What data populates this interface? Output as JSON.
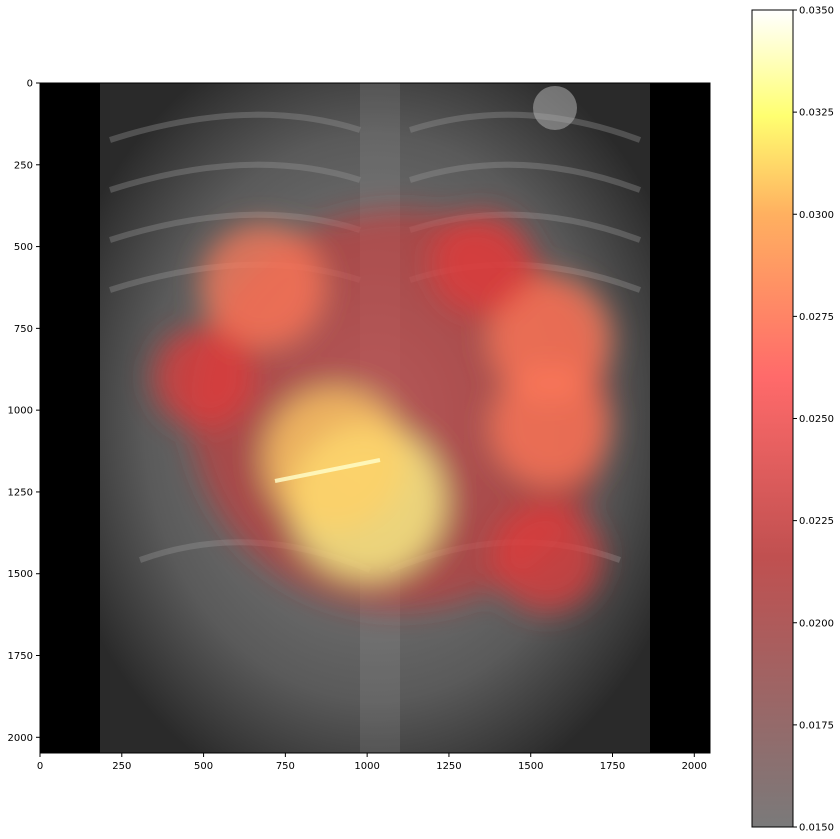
{
  "chart_data": {
    "type": "heatmap",
    "description_free": true,
    "x_axis": {
      "range": [
        0,
        2048
      ],
      "ticks": [
        0,
        250,
        500,
        750,
        1000,
        1250,
        1500,
        1750,
        2000
      ]
    },
    "y_axis": {
      "range": [
        2048,
        0
      ],
      "ticks": [
        0,
        250,
        500,
        750,
        1000,
        1250,
        1500,
        1750,
        2000
      ]
    },
    "colorbar": {
      "colormap": "hot",
      "range": [
        0.015,
        0.035
      ],
      "ticks": [
        "0.0150",
        "0.0175",
        "0.0200",
        "0.0225",
        "0.0250",
        "0.0275",
        "0.0300",
        "0.0325",
        "0.0350"
      ]
    },
    "hotspots": [
      {
        "x": 1000,
        "y": 1280,
        "value": 0.034
      },
      {
        "x": 900,
        "y": 1150,
        "value": 0.031
      },
      {
        "x": 680,
        "y": 620,
        "value": 0.027
      },
      {
        "x": 1560,
        "y": 780,
        "value": 0.027
      },
      {
        "x": 1560,
        "y": 1050,
        "value": 0.026
      },
      {
        "x": 1550,
        "y": 1450,
        "value": 0.024
      },
      {
        "x": 500,
        "y": 900,
        "value": 0.022
      },
      {
        "x": 1350,
        "y": 550,
        "value": 0.022
      }
    ],
    "grid": false
  },
  "colors": {
    "background": "#ffffff",
    "image_border": "#000000",
    "xray_tone": "#6e6e6e"
  }
}
